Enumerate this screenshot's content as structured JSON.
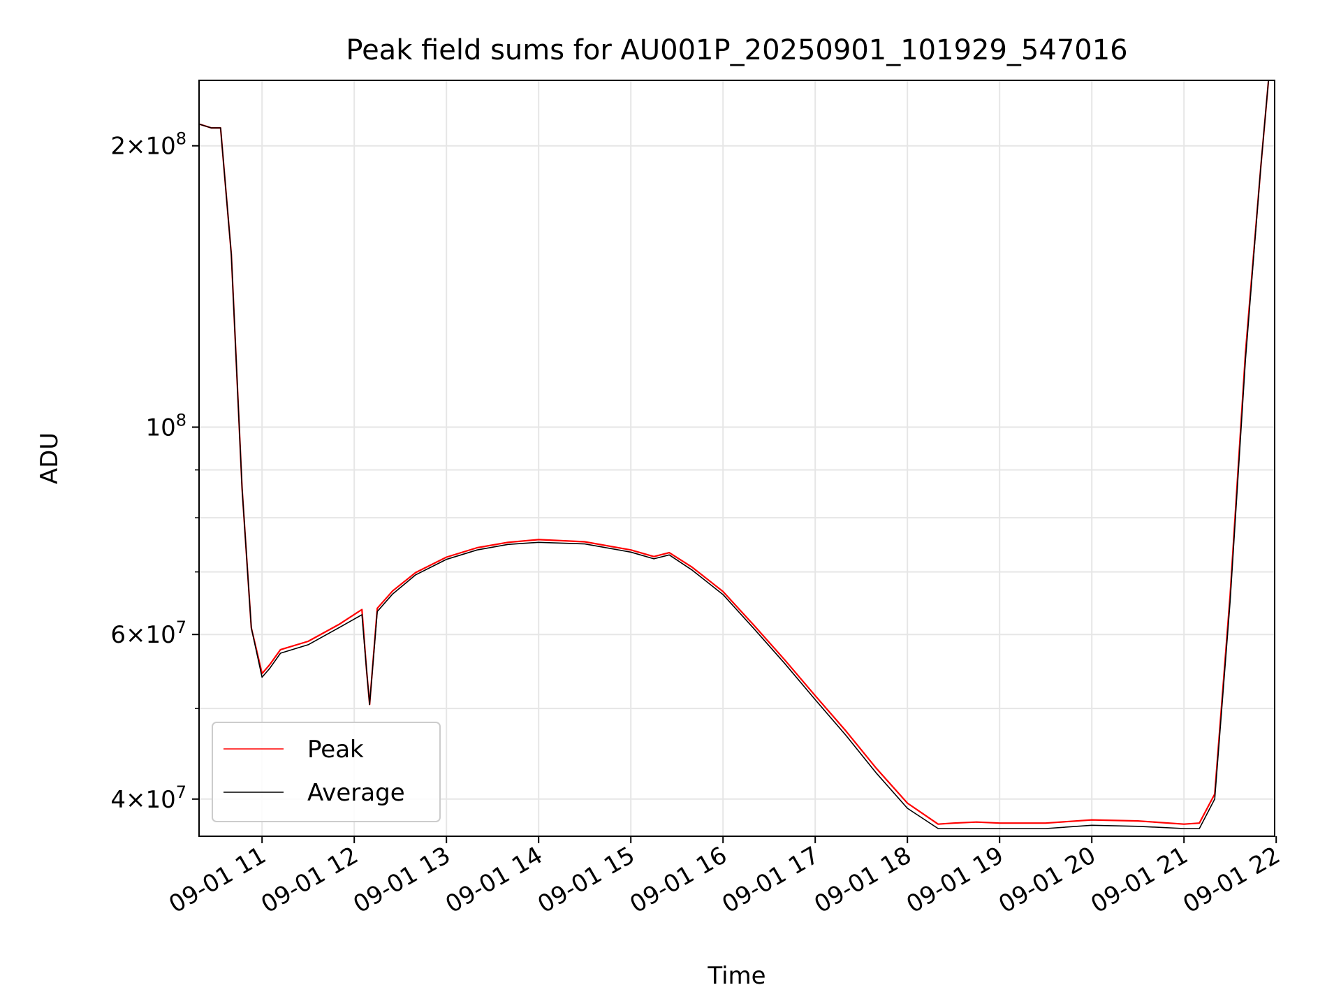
{
  "chart_data": {
    "type": "line",
    "title": "Peak field sums for AU001P_20250901_101929_547016",
    "xlabel": "Time",
    "ylabel": "ADU",
    "yscale": "log",
    "grid": true,
    "legend_position": "lower left",
    "xlim": [
      "2025-09-01 10:19",
      "2025-09-01 21:59"
    ],
    "ylim": [
      36500000,
      235000000
    ],
    "x_ticks": [
      "2025-09-01 11:00",
      "2025-09-01 12:00",
      "2025-09-01 13:00",
      "2025-09-01 14:00",
      "2025-09-01 15:00",
      "2025-09-01 16:00",
      "2025-09-01 17:00",
      "2025-09-01 18:00",
      "2025-09-01 19:00",
      "2025-09-01 20:00",
      "2025-09-01 21:00",
      "2025-09-01 22:00"
    ],
    "x_tick_labels": [
      "09-01 11",
      "09-01 12",
      "09-01 13",
      "09-01 14",
      "09-01 15",
      "09-01 16",
      "09-01 17",
      "09-01 18",
      "09-01 19",
      "09-01 20",
      "09-01 21",
      "09-01 22"
    ],
    "y_ticks_major": [
      {
        "value": 40000000,
        "mantissa": "4",
        "exponent": "7"
      },
      {
        "value": 60000000,
        "mantissa": "6",
        "exponent": "7"
      },
      {
        "value": 100000000,
        "mantissa": "",
        "exponent": "8"
      },
      {
        "value": 200000000,
        "mantissa": "2",
        "exponent": "8"
      }
    ],
    "y_ticks_minor": [
      50000000,
      70000000,
      80000000,
      90000000
    ],
    "y_tick_base": "10",
    "y_tick_times": "×",
    "series": [
      {
        "name": "Peak",
        "color": "#ff0000",
        "x": [
          "2025-09-01 10:19",
          "2025-09-01 10:27",
          "2025-09-01 10:33",
          "2025-09-01 10:40",
          "2025-09-01 10:47",
          "2025-09-01 10:53",
          "2025-09-01 11:00",
          "2025-09-01 11:05",
          "2025-09-01 11:12",
          "2025-09-01 11:30",
          "2025-09-01 11:50",
          "2025-09-01 12:05",
          "2025-09-01 12:08",
          "2025-09-01 12:10",
          "2025-09-01 12:15",
          "2025-09-01 12:25",
          "2025-09-01 12:40",
          "2025-09-01 13:00",
          "2025-09-01 13:20",
          "2025-09-01 13:40",
          "2025-09-01 14:00",
          "2025-09-01 14:30",
          "2025-09-01 15:00",
          "2025-09-01 15:15",
          "2025-09-01 15:25",
          "2025-09-01 15:40",
          "2025-09-01 16:00",
          "2025-09-01 16:20",
          "2025-09-01 16:40",
          "2025-09-01 17:00",
          "2025-09-01 17:20",
          "2025-09-01 17:40",
          "2025-09-01 18:00",
          "2025-09-01 18:20",
          "2025-09-01 18:30",
          "2025-09-01 18:45",
          "2025-09-01 19:00",
          "2025-09-01 19:30",
          "2025-09-01 20:00",
          "2025-09-01 20:30",
          "2025-09-01 21:00",
          "2025-09-01 21:10",
          "2025-09-01 21:20",
          "2025-09-01 21:30",
          "2025-09-01 21:40",
          "2025-09-01 21:50",
          "2025-09-01 21:55"
        ],
        "y": [
          211000000,
          209000000,
          209000000,
          153000000,
          86000000,
          61000000,
          54500000,
          55700000,
          57800000,
          59000000,
          61500000,
          63800000,
          55000000,
          50500000,
          64000000,
          66800000,
          69900000,
          72600000,
          74300000,
          75300000,
          75800000,
          75400000,
          73900000,
          72700000,
          73400000,
          70800000,
          66700000,
          61400000,
          56400000,
          51600000,
          47300000,
          43100000,
          39600000,
          37600000,
          37700000,
          37800000,
          37700000,
          37700000,
          38000000,
          37900000,
          37600000,
          37700000,
          40500000,
          66000000,
          120000000,
          190000000,
          235000000
        ]
      },
      {
        "name": "Average",
        "color": "#000000",
        "x": [
          "2025-09-01 10:19",
          "2025-09-01 10:27",
          "2025-09-01 10:33",
          "2025-09-01 10:40",
          "2025-09-01 10:47",
          "2025-09-01 10:53",
          "2025-09-01 11:00",
          "2025-09-01 11:05",
          "2025-09-01 11:12",
          "2025-09-01 11:30",
          "2025-09-01 11:50",
          "2025-09-01 12:05",
          "2025-09-01 12:08",
          "2025-09-01 12:10",
          "2025-09-01 12:15",
          "2025-09-01 12:25",
          "2025-09-01 12:40",
          "2025-09-01 13:00",
          "2025-09-01 13:20",
          "2025-09-01 13:40",
          "2025-09-01 14:00",
          "2025-09-01 14:30",
          "2025-09-01 15:00",
          "2025-09-01 15:15",
          "2025-09-01 15:25",
          "2025-09-01 15:40",
          "2025-09-01 16:00",
          "2025-09-01 16:20",
          "2025-09-01 16:40",
          "2025-09-01 17:00",
          "2025-09-01 17:20",
          "2025-09-01 17:40",
          "2025-09-01 18:00",
          "2025-09-01 18:20",
          "2025-09-01 18:30",
          "2025-09-01 18:45",
          "2025-09-01 19:00",
          "2025-09-01 19:30",
          "2025-09-01 20:00",
          "2025-09-01 20:30",
          "2025-09-01 21:00",
          "2025-09-01 21:10",
          "2025-09-01 21:20",
          "2025-09-01 21:30",
          "2025-09-01 21:40",
          "2025-09-01 21:50",
          "2025-09-01 21:55"
        ],
        "y": [
          211000000,
          209000000,
          209000000,
          153000000,
          86000000,
          61000000,
          54000000,
          55200000,
          57300000,
          58500000,
          61000000,
          63000000,
          55000000,
          50500000,
          63500000,
          66300000,
          69500000,
          72200000,
          73900000,
          74900000,
          75300000,
          75000000,
          73500000,
          72300000,
          73000000,
          70300000,
          66200000,
          60900000,
          55900000,
          51100000,
          46800000,
          42600000,
          39100000,
          37200000,
          37200000,
          37200000,
          37200000,
          37200000,
          37500000,
          37400000,
          37200000,
          37200000,
          40000000,
          65000000,
          118000000,
          190000000,
          235000000
        ]
      }
    ]
  }
}
